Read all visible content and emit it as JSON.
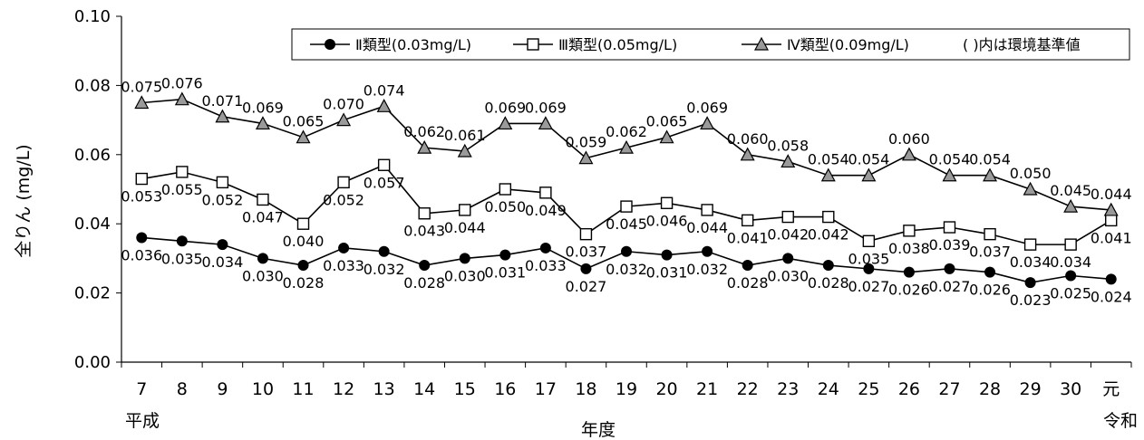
{
  "chart_data": {
    "type": "line",
    "title": "",
    "xlabel": "年度",
    "ylabel": "全りん (mg/L)",
    "ylim": [
      0,
      0.1
    ],
    "yticks": [
      "0.00",
      "0.02",
      "0.04",
      "0.06",
      "0.08",
      "0.10"
    ],
    "categories": [
      "7",
      "8",
      "9",
      "10",
      "11",
      "12",
      "13",
      "14",
      "15",
      "16",
      "17",
      "18",
      "19",
      "20",
      "21",
      "22",
      "23",
      "24",
      "25",
      "26",
      "27",
      "28",
      "29",
      "30",
      "元"
    ],
    "era_labels": {
      "start": "平成",
      "end": "令和"
    },
    "grid": false,
    "legend_position": "top-right",
    "legend_note": "( )内は環境基準値",
    "series": [
      {
        "name": "Ⅱ類型(0.03mg/L)",
        "marker": "filled-circle",
        "values": [
          0.036,
          0.035,
          0.034,
          0.03,
          0.028,
          0.033,
          0.032,
          0.028,
          0.03,
          0.031,
          0.033,
          0.027,
          0.032,
          0.031,
          0.032,
          0.028,
          0.03,
          0.028,
          0.027,
          0.026,
          0.027,
          0.026,
          0.023,
          0.025,
          0.024
        ],
        "labels": [
          "0.036",
          "0.035",
          "0.034",
          "0.030",
          "0.028",
          "0.033",
          "0.032",
          "0.028",
          "0.030",
          "0.031",
          "0.033",
          "0.027",
          "0.032",
          "0.031",
          "0.032",
          "0.028",
          "0.030",
          "0.028",
          "0.027",
          "0.026",
          "0.027",
          "0.026",
          "0.023",
          "0.025",
          "0.024"
        ]
      },
      {
        "name": "Ⅲ類型(0.05mg/L)",
        "marker": "open-square",
        "values": [
          0.053,
          0.055,
          0.052,
          0.047,
          0.04,
          0.052,
          0.057,
          0.043,
          0.044,
          0.05,
          0.049,
          0.037,
          0.045,
          0.046,
          0.044,
          0.041,
          0.042,
          0.042,
          0.035,
          0.038,
          0.039,
          0.037,
          0.034,
          0.034,
          0.041
        ],
        "labels": [
          "0.053",
          "0.055",
          "0.052",
          "0.047",
          "0.040",
          "0.052",
          "0.057",
          "0.043",
          "0.044",
          "0.050",
          "0.049",
          "0.037",
          "0.045",
          "0.046",
          "0.044",
          "0.041",
          "0.042",
          "0.042",
          "0.035",
          "0.038",
          "0.039",
          "0.037",
          "0.034",
          "0.034",
          "0.041"
        ]
      },
      {
        "name": "Ⅳ類型(0.09mg/L)",
        "marker": "gray-triangle",
        "values": [
          0.075,
          0.076,
          0.071,
          0.069,
          0.065,
          0.07,
          0.074,
          0.062,
          0.061,
          0.069,
          0.069,
          0.059,
          0.062,
          0.065,
          0.069,
          0.06,
          0.058,
          0.054,
          0.054,
          0.06,
          0.054,
          0.054,
          0.05,
          0.045,
          0.044
        ],
        "labels": [
          "0.075",
          "0.076",
          "0.071",
          "0.069",
          "0.065",
          "0.070",
          "0.074",
          "0.062",
          "0.061",
          "0.069",
          "0.069",
          "0.059",
          "0.062",
          "0.065",
          "0.069",
          "0.060",
          "0.058",
          "0.054",
          "0.054",
          "0.060",
          "0.054",
          "0.054",
          "0.050",
          "0.045",
          "0.044"
        ]
      }
    ]
  }
}
